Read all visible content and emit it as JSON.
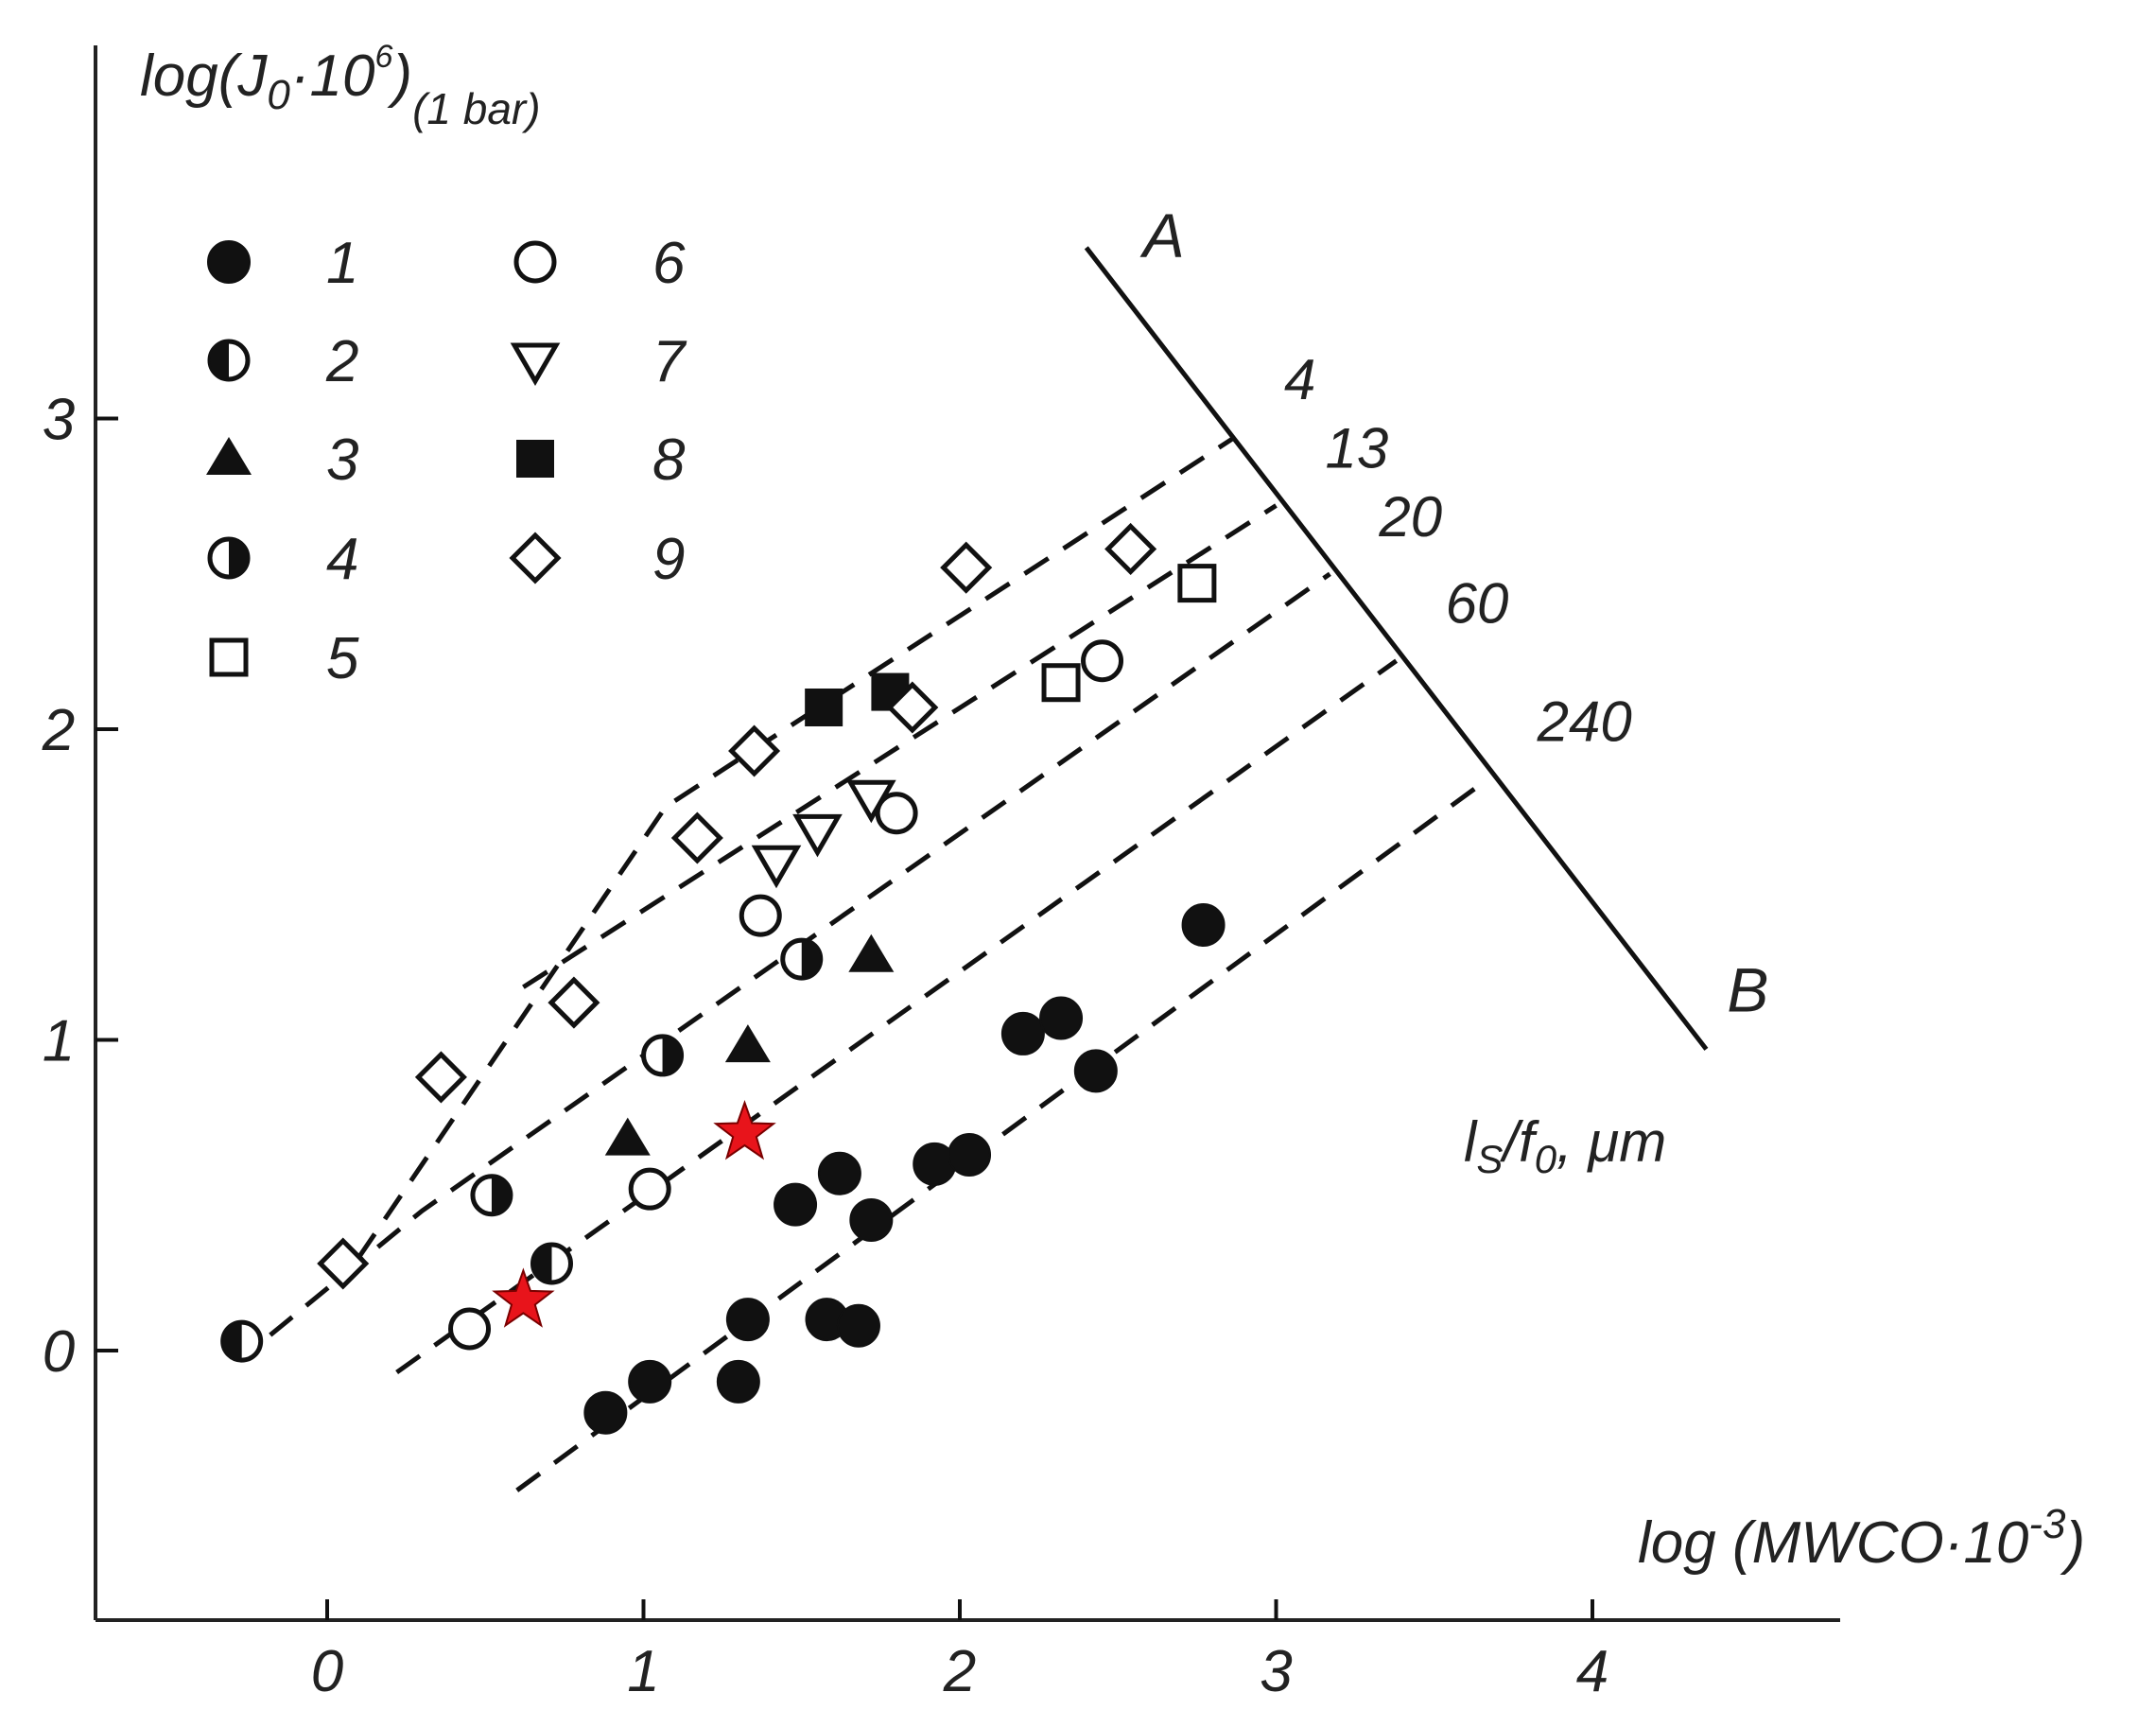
{
  "chart_data": {
    "type": "scatter",
    "title": "",
    "ylabel": {
      "main": "log(J",
      "sub0": "0",
      "mid": "·10",
      "sup": "6",
      "close": ")",
      "cond": "(1 bar)"
    },
    "xlabel": {
      "main": "log (MWCO·10",
      "sup": "-3",
      "close": ")"
    },
    "xlim": [
      -0.73,
      4.8
    ],
    "ylim": [
      -0.85,
      4.3
    ],
    "xticks": [
      0,
      1,
      2,
      3,
      4
    ],
    "yticks": [
      0,
      1,
      2,
      3
    ],
    "colors": {
      "ink": "#111111",
      "axis": "#222222",
      "star": "#e8141b"
    },
    "legend": [
      {
        "id": "1",
        "label": "1",
        "marker": "circle-filled"
      },
      {
        "id": "2",
        "label": "2",
        "marker": "circle-half-left"
      },
      {
        "id": "3",
        "label": "3",
        "marker": "triangle-filled"
      },
      {
        "id": "4",
        "label": "4",
        "marker": "circle-half-right"
      },
      {
        "id": "5",
        "label": "5",
        "marker": "square-open"
      },
      {
        "id": "6",
        "label": "6",
        "marker": "circle-open"
      },
      {
        "id": "7",
        "label": "7",
        "marker": "triangle-down-open"
      },
      {
        "id": "8",
        "label": "8",
        "marker": "square-filled"
      },
      {
        "id": "9",
        "label": "9",
        "marker": "diamond-open"
      }
    ],
    "series": [
      {
        "id": "1",
        "marker": "circle-filled",
        "points": [
          [
            0.88,
            -0.2
          ],
          [
            1.02,
            -0.1
          ],
          [
            1.3,
            -0.1
          ],
          [
            1.33,
            0.1
          ],
          [
            1.48,
            0.47
          ],
          [
            1.58,
            0.1
          ],
          [
            1.62,
            0.57
          ],
          [
            1.68,
            0.08
          ],
          [
            1.72,
            0.42
          ],
          [
            1.92,
            0.6
          ],
          [
            2.03,
            0.63
          ],
          [
            2.2,
            1.02
          ],
          [
            2.32,
            1.07
          ],
          [
            2.43,
            0.9
          ],
          [
            2.77,
            1.37
          ]
        ]
      },
      {
        "id": "2",
        "marker": "circle-half-left",
        "points": [
          [
            -0.27,
            0.03
          ],
          [
            0.71,
            0.28
          ]
        ]
      },
      {
        "id": "3",
        "marker": "triangle-filled",
        "points": [
          [
            0.95,
            0.68
          ],
          [
            1.33,
            0.98
          ],
          [
            1.72,
            1.27
          ]
        ]
      },
      {
        "id": "4",
        "marker": "circle-half-right",
        "points": [
          [
            0.52,
            0.5
          ],
          [
            1.06,
            0.95
          ],
          [
            1.5,
            1.26
          ]
        ]
      },
      {
        "id": "5",
        "marker": "square-open",
        "points": [
          [
            2.32,
            2.15
          ],
          [
            2.75,
            2.47
          ]
        ]
      },
      {
        "id": "6",
        "marker": "circle-open",
        "points": [
          [
            0.45,
            0.07
          ],
          [
            1.02,
            0.52
          ],
          [
            1.37,
            1.4
          ],
          [
            1.8,
            1.73
          ],
          [
            2.45,
            2.22
          ]
        ]
      },
      {
        "id": "7",
        "marker": "triangle-down-open",
        "points": [
          [
            1.42,
            1.57
          ],
          [
            1.55,
            1.67
          ],
          [
            1.72,
            1.78
          ]
        ]
      },
      {
        "id": "8",
        "marker": "square-filled",
        "points": [
          [
            1.57,
            2.07
          ],
          [
            1.78,
            2.12
          ]
        ]
      },
      {
        "id": "9",
        "marker": "diamond-open",
        "points": [
          [
            0.05,
            0.28
          ],
          [
            0.36,
            0.88
          ],
          [
            0.78,
            1.12
          ],
          [
            1.17,
            1.65
          ],
          [
            1.35,
            1.93
          ],
          [
            1.85,
            2.07
          ],
          [
            2.02,
            2.52
          ],
          [
            2.54,
            2.58
          ]
        ]
      },
      {
        "id": "star",
        "marker": "star-red",
        "points": [
          [
            0.62,
            0.16
          ],
          [
            1.32,
            0.7
          ]
        ]
      }
    ],
    "scale_line": {
      "labels": [
        "A",
        "B"
      ],
      "title": {
        "main": "l",
        "sub1": "S",
        "mid": "/f",
        "sub2": "0",
        "rest": ", μm"
      },
      "endpoints": [
        [
          2.4,
          3.55
        ],
        [
          4.36,
          0.97
        ]
      ],
      "marks": [
        {
          "label": "4",
          "x": 2.87,
          "y": 2.94
        },
        {
          "label": "13",
          "x": 3.0,
          "y": 2.72
        },
        {
          "label": "20",
          "x": 3.17,
          "y": 2.5
        },
        {
          "label": "60",
          "x": 3.38,
          "y": 2.22
        },
        {
          "label": "240",
          "x": 3.67,
          "y": 1.84
        }
      ]
    },
    "dashed_lines": [
      {
        "from": [
          0.6,
          -0.45
        ],
        "to": [
          3.67,
          1.84
        ]
      },
      {
        "from": [
          0.22,
          -0.07
        ],
        "to": [
          3.38,
          2.22
        ]
      },
      {
        "from": [
          -0.18,
          0.05
        ],
        "to": [
          0.3,
          0.45
        ],
        "then": [
          3.17,
          2.5
        ]
      },
      {
        "from": [
          0.62,
          1.17
        ],
        "to": [
          3.0,
          2.72
        ]
      },
      {
        "from": [
          0.1,
          0.3
        ],
        "to": [
          1.07,
          1.75
        ],
        "then": [
          2.87,
          2.94
        ]
      }
    ]
  }
}
